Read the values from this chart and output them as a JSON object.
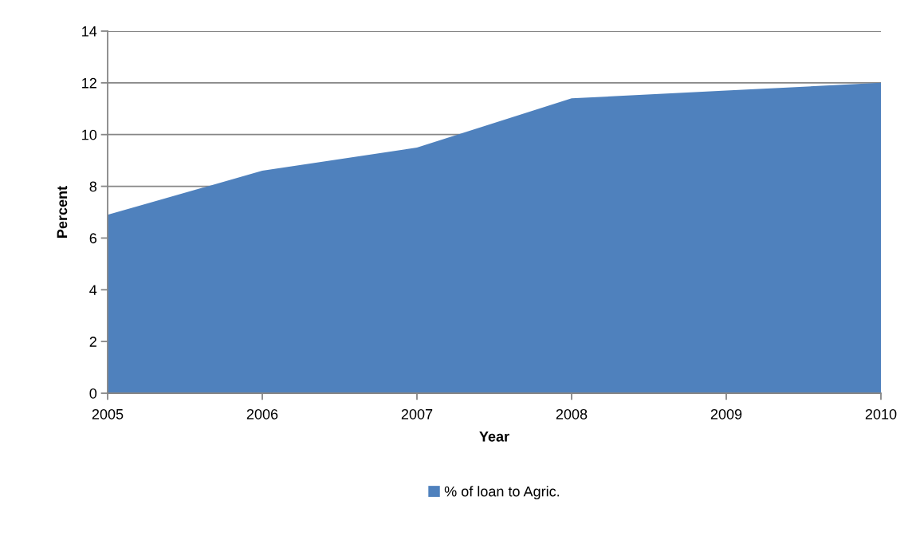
{
  "chart_data": {
    "type": "area",
    "xlabel": "Year",
    "ylabel": "Percent",
    "categories": [
      "2005",
      "2006",
      "2007",
      "2008",
      "2009",
      "2010"
    ],
    "series": [
      {
        "name": "% of loan to Agric.",
        "color": "#4f81bd",
        "values": [
          6.9,
          8.6,
          9.5,
          11.4,
          11.7,
          12
        ]
      }
    ],
    "ylim": [
      0,
      14
    ],
    "yticks": [
      0,
      2,
      4,
      6,
      8,
      10,
      12,
      14
    ],
    "grid": "y",
    "legend": "bottom"
  }
}
